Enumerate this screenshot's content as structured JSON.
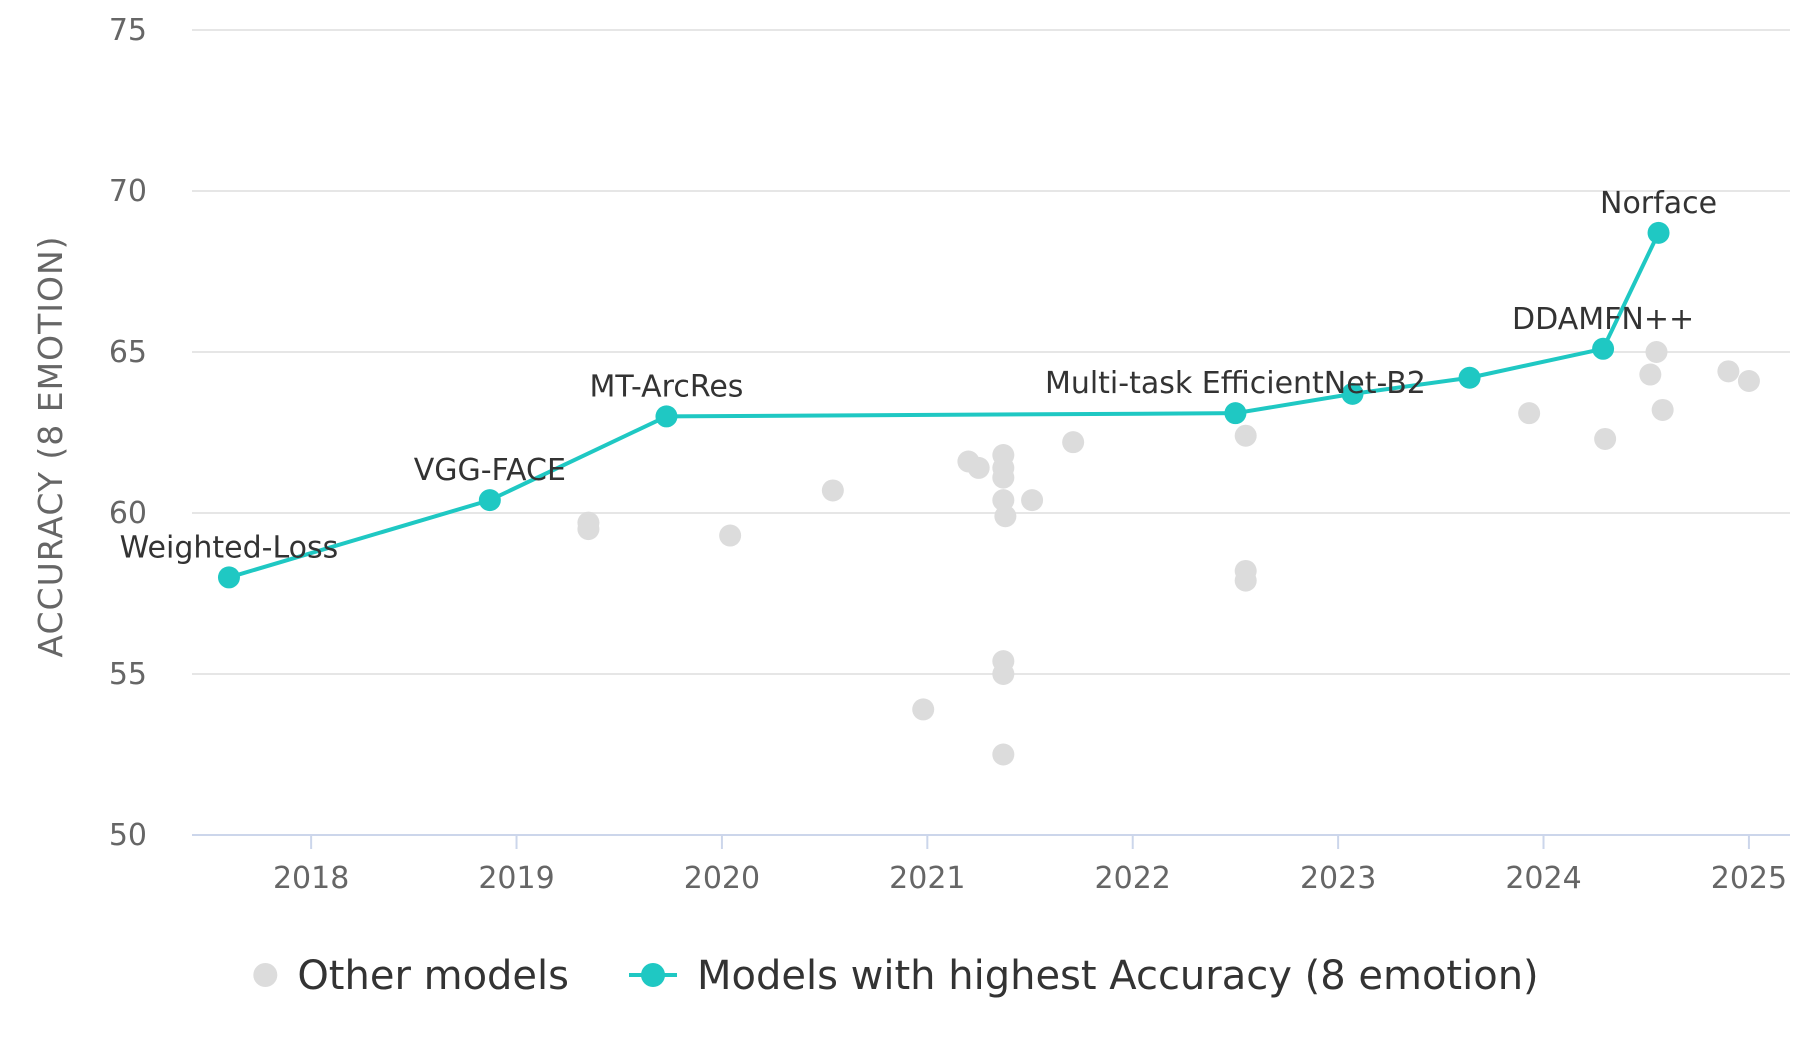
{
  "chart_data": {
    "type": "scatter",
    "ylabel": "ACCURACY (8 EMOTION)",
    "xlabel": "",
    "ylim": [
      50,
      75
    ],
    "yticks": [
      50,
      55,
      60,
      65,
      70,
      75
    ],
    "xlim": [
      2017.42,
      2025.2
    ],
    "xticks": [
      2018,
      2019,
      2020,
      2021,
      2022,
      2023,
      2024,
      2025
    ],
    "grid": true,
    "legend_position": "bottom",
    "colors": {
      "other": "#dcdcdc",
      "best": "#1fc8c3"
    },
    "series": [
      {
        "name": "Other models",
        "kind": "scatter",
        "points": [
          {
            "x": 2019.35,
            "y": 59.5
          },
          {
            "x": 2019.35,
            "y": 59.7
          },
          {
            "x": 2020.04,
            "y": 59.3
          },
          {
            "x": 2020.54,
            "y": 60.7
          },
          {
            "x": 2020.98,
            "y": 53.9
          },
          {
            "x": 2021.2,
            "y": 61.6
          },
          {
            "x": 2021.25,
            "y": 61.4
          },
          {
            "x": 2021.37,
            "y": 61.8
          },
          {
            "x": 2021.37,
            "y": 61.4
          },
          {
            "x": 2021.37,
            "y": 61.1
          },
          {
            "x": 2021.37,
            "y": 60.4
          },
          {
            "x": 2021.38,
            "y": 59.9
          },
          {
            "x": 2021.37,
            "y": 55.4
          },
          {
            "x": 2021.37,
            "y": 55.0
          },
          {
            "x": 2021.37,
            "y": 52.5
          },
          {
            "x": 2021.51,
            "y": 60.4
          },
          {
            "x": 2021.71,
            "y": 62.2
          },
          {
            "x": 2022.55,
            "y": 62.4
          },
          {
            "x": 2022.55,
            "y": 58.2
          },
          {
            "x": 2022.55,
            "y": 57.9
          },
          {
            "x": 2023.93,
            "y": 63.1
          },
          {
            "x": 2024.3,
            "y": 62.3
          },
          {
            "x": 2024.55,
            "y": 65.0
          },
          {
            "x": 2024.52,
            "y": 64.3
          },
          {
            "x": 2024.58,
            "y": 63.2
          },
          {
            "x": 2024.9,
            "y": 64.4
          },
          {
            "x": 2025.0,
            "y": 64.1
          }
        ]
      },
      {
        "name": "Models with highest Accuracy (8 emotion)",
        "kind": "line",
        "points": [
          {
            "x": 2017.6,
            "y": 58.0,
            "label": "Weighted-Loss"
          },
          {
            "x": 2018.87,
            "y": 60.4,
            "label": "VGG-FACE"
          },
          {
            "x": 2019.73,
            "y": 63.0,
            "label": "MT-ArcRes"
          },
          {
            "x": 2022.5,
            "y": 63.1,
            "label": "Multi-task EfficientNet-B2"
          },
          {
            "x": 2023.07,
            "y": 63.7
          },
          {
            "x": 2023.64,
            "y": 64.2
          },
          {
            "x": 2024.29,
            "y": 65.1,
            "label": "DDAMFN++"
          },
          {
            "x": 2024.56,
            "y": 68.7,
            "label": "Norface"
          }
        ]
      }
    ]
  }
}
